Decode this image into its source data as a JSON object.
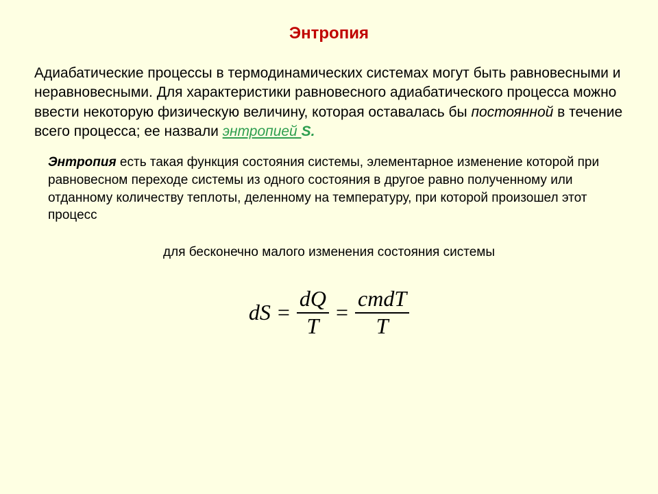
{
  "title": "Энтропия",
  "para1_a": "Адиабатические процессы в термодинамических системах могут быть равновесными и неравновесными. Для характеристики равновесного адиабатического процесса можно ввести некоторую физическую величину, которая оставалась бы ",
  "para1_italic": "постоянной",
  "para1_b": " в течение всего процесса; ее назвали ",
  "para1_link": "энтропией ",
  "para1_s": "S.",
  "para2_boldstart": "Энтропия",
  "para2_rest": " есть такая функция состояния системы, элементарное изменение которой при равновесном переходе системы из одного состояния в другое равно полученному или отданному количеству теплоты, деленному на температуру, при которой произошел этот процесс",
  "para3": "для бесконечно малого изменения состояния системы",
  "formula": {
    "lhs": "dS",
    "eq": "=",
    "frac1_num": "dQ",
    "frac1_den": "T",
    "frac2_num": "cmdT",
    "frac2_den": "T"
  }
}
